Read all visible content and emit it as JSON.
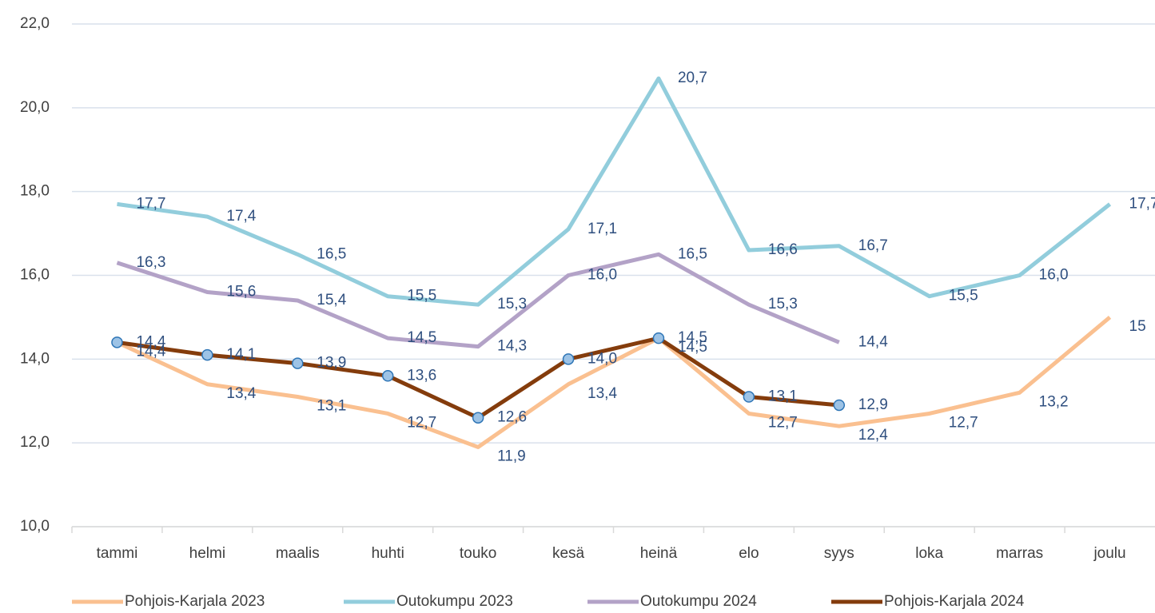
{
  "chart_data": {
    "type": "line",
    "categories": [
      "tammi",
      "helmi",
      "maalis",
      "huhti",
      "touko",
      "kesä",
      "heinä",
      "elo",
      "syys",
      "loka",
      "marras",
      "joulu"
    ],
    "series": [
      {
        "name": "Pohjois-Karjala 2023",
        "color": "#fac090",
        "values": [
          14.4,
          13.4,
          13.1,
          12.7,
          11.9,
          13.4,
          14.5,
          12.7,
          12.4,
          12.7,
          13.2,
          15
        ],
        "value_labels": [
          "14,4",
          "13,4",
          "13,1",
          "12,7",
          "11,9",
          "13,4",
          "14,5",
          "12,7",
          "12,4",
          "12,7",
          "13,2",
          "15"
        ]
      },
      {
        "name": "Outokumpu 2023",
        "color": "#92cddc",
        "values": [
          17.7,
          17.4,
          16.5,
          15.5,
          15.3,
          17.1,
          20.7,
          16.6,
          16.7,
          15.5,
          16.0,
          17.7
        ],
        "value_labels": [
          "17,7",
          "17,4",
          "16,5",
          "15,5",
          "15,3",
          "17,1",
          "20,7",
          "16,6",
          "16,7",
          "15,5",
          "16,0",
          "17,7"
        ]
      },
      {
        "name": "Outokumpu 2024",
        "color": "#b3a2c7",
        "values": [
          16.3,
          15.6,
          15.4,
          14.5,
          14.3,
          16.0,
          16.5,
          15.3,
          14.4,
          null,
          null,
          null
        ],
        "value_labels": [
          "16,3",
          "15,6",
          "15,4",
          "14,5",
          "14,3",
          "16,0",
          "16,5",
          "15,3",
          "14,4",
          null,
          null,
          null
        ]
      },
      {
        "name": "Pohjois-Karjala 2024",
        "color": "#843c0c",
        "markers": true,
        "values": [
          14.4,
          14.1,
          13.9,
          13.6,
          12.6,
          14.0,
          14.5,
          13.1,
          12.9,
          null,
          null,
          null
        ],
        "value_labels": [
          "14,4",
          "14,1",
          "13,9",
          "13,6",
          "12,6",
          "14,0",
          "14,5",
          "13,1",
          "12,9",
          null,
          null,
          null
        ]
      }
    ],
    "ylim": [
      10,
      22
    ],
    "yticks": [
      {
        "value": 10,
        "label": "10,0"
      },
      {
        "value": 12,
        "label": "12,0"
      },
      {
        "value": 14,
        "label": "14,0"
      },
      {
        "value": 16,
        "label": "16,0"
      },
      {
        "value": 18,
        "label": "18,0"
      },
      {
        "value": 20,
        "label": "20,0"
      },
      {
        "value": 22,
        "label": "22,0"
      }
    ],
    "grid": true,
    "legend": "bottom"
  }
}
